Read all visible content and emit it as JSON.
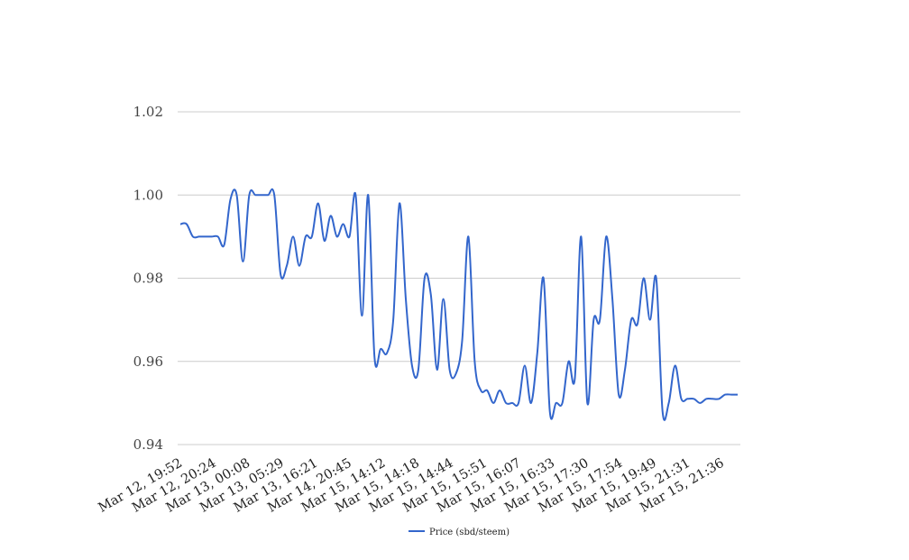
{
  "chart_data": {
    "type": "line",
    "title": "",
    "xlabel": "",
    "ylabel": "",
    "ylim": [
      0.94,
      1.02
    ],
    "yticks": [
      0.94,
      0.96,
      0.98,
      1.0,
      1.02
    ],
    "ytick_labels": [
      "0.94",
      "0.96",
      "0.98",
      "1.00",
      "1.02"
    ],
    "grid": true,
    "legend_position": "bottom-center",
    "color": "#3366cc",
    "x_tick_labels": [
      "Mar 12, 19:52",
      "Mar 12, 20:24",
      "Mar 13, 00:08",
      "Mar 13, 05:29",
      "Mar 13, 16:21",
      "Mar 14, 20:45",
      "Mar 15, 14:12",
      "Mar 15, 14:18",
      "Mar 15, 14:44",
      "Mar 15, 15:51",
      "Mar 15, 16:07",
      "Mar 15, 16:33",
      "Mar 15, 17:30",
      "Mar 15, 17:54",
      "Mar 15, 19:49",
      "Mar 15, 21:31",
      "Mar 15, 21:36"
    ],
    "series": [
      {
        "name": "Price (sbd/steem)",
        "values": [
          0.993,
          0.993,
          0.99,
          0.99,
          0.99,
          0.99,
          0.99,
          0.988,
          0.999,
          1.0,
          0.984,
          1.0,
          1.0,
          1.0,
          1.0,
          1.0,
          0.981,
          0.983,
          0.99,
          0.983,
          0.99,
          0.99,
          0.998,
          0.989,
          0.995,
          0.99,
          0.993,
          0.99,
          1.0,
          0.971,
          1.0,
          0.961,
          0.963,
          0.962,
          0.97,
          0.998,
          0.975,
          0.959,
          0.958,
          0.98,
          0.976,
          0.958,
          0.975,
          0.958,
          0.957,
          0.965,
          0.99,
          0.96,
          0.953,
          0.953,
          0.95,
          0.953,
          0.95,
          0.95,
          0.95,
          0.959,
          0.95,
          0.962,
          0.98,
          0.948,
          0.95,
          0.95,
          0.96,
          0.956,
          0.99,
          0.95,
          0.97,
          0.97,
          0.99,
          0.975,
          0.952,
          0.958,
          0.97,
          0.969,
          0.98,
          0.97,
          0.98,
          0.948,
          0.95,
          0.959,
          0.951,
          0.951,
          0.951,
          0.95,
          0.951,
          0.951,
          0.951,
          0.952,
          0.952,
          0.952
        ]
      }
    ]
  }
}
